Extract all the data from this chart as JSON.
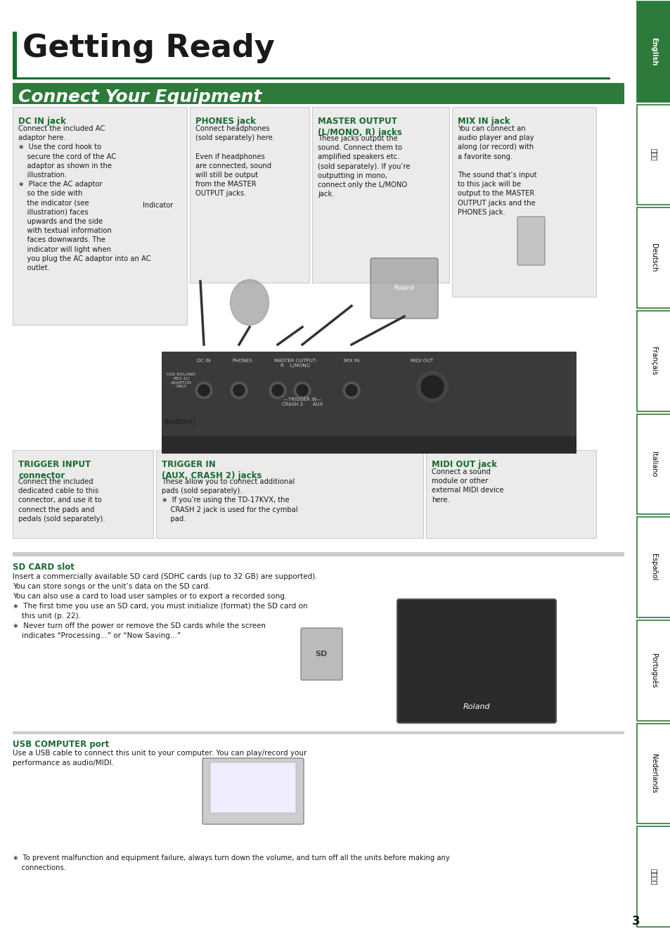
{
  "page_bg": "#ffffff",
  "title": "Getting Ready",
  "title_bar_color": "#1a6b2f",
  "title_font_size": 32,
  "section_header": "Connect Your Equipment",
  "section_header_bg": "#2d7a3a",
  "section_header_color": "#ffffff",
  "section_header_font_size": 18,
  "sidebar_tabs": [
    "English",
    "日本語",
    "Deutsch",
    "Français",
    "Italiano",
    "Español",
    "Português",
    "Nederlands",
    "简体中文"
  ],
  "sidebar_active": 0,
  "sidebar_bg_active": "#2d7a3a",
  "sidebar_bg_inactive": "#ffffff",
  "sidebar_border_color": "#2d7a3a",
  "sidebar_text_active": "#ffffff",
  "sidebar_text_inactive": "#000000",
  "content_box_bg": "#f0f0f0",
  "content_box_border": "#cccccc",
  "green_text_color": "#1a6b2f",
  "black_text_color": "#1a1a1a",
  "label_color": "#2060a0",
  "page_number": "3",
  "dc_in_title": "DC IN jack",
  "dc_in_text": "Connect the included AC\nadaptor here.\n∗  Use the cord hook to\n    secure the cord of the AC\n    adaptor as shown in the\n    illustration.\n∗  Place the AC adaptor\n    so the side with\n    the indicator (see\n    illustration) faces\n    upwards and the side\n    with textual information\n    faces downwards. The\n    indicator will light when\n    you plug the AC adaptor into an AC\n    outlet.",
  "phones_title": "PHONES jack",
  "phones_text": "Connect headphones\n(sold separately) here.\n\nEven if headphones\nare connected, sound\nwill still be output\nfrom the MASTER\nOUTPUT jacks.",
  "master_title": "MASTER OUTPUT\n(L/MONO, R) jacks",
  "master_text": "These jacks output the\nsound. Connect them to\namplified speakers etc.\n(sold separately). If you’re\noutputting in mono,\nconnect only the L/MONO\njack.",
  "mixin_title": "MIX IN jack",
  "mixin_text": "You can connect an\naudio player and play\nalong (or record) with\na favorite song.\n\nThe sound that’s input\nto this jack will be\noutput to the MASTER\nOUTPUT jacks and the\nPHONES jack.",
  "trigger_title": "TRIGGER INPUT\nconnector",
  "trigger_text": "Connect the included\ndedicated cable to this\nconnector, and use it to\nconnect the pads and\npedals (sold separately).",
  "trigger2_title": "TRIGGER IN\n(AUX, CRASH 2) jacks",
  "trigger2_text": "These allow you to connect additional\npads (sold separately).\n∗  If you’re using the TD-17KVX, the\n    CRASH 2 jack is used for the cymbal\n    pad.",
  "midi_title": "MIDI OUT jack",
  "midi_text": "Connect a sound\nmodule or other\nexternal MIDI device\nhere.",
  "sd_title": "SD CARD slot",
  "sd_text": "Insert a commercially available SD card (SDHC cards (up to 32 GB) are supported).\nYou can store songs or the unit’s data on the SD card.\nYou can also use a card to load user samples or to export a recorded song.\n∗  The first time you use an SD card, you must initialize (format) the SD card on\n    this unit (p. 22).\n∗  Never turn off the power or remove the SD cards while the screen\n    indicates “Processing...” or “Now Saving...”",
  "usb_title": "USB COMPUTER port",
  "usb_text": "Use a USB cable to connect this unit to your computer. You can play/record your\nperformance as audio/MIDI.",
  "footnote": "∗  To prevent malfunction and equipment failure, always turn down the volume, and turn off all the units before making any\n    connections.",
  "indicator_label": "Indicator",
  "bottom_label": "(bottom)"
}
